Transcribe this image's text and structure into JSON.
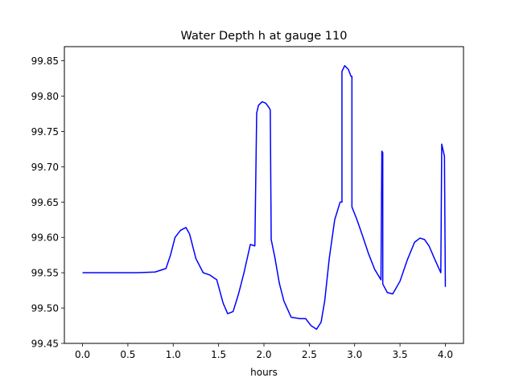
{
  "chart_data": {
    "type": "line",
    "title": "Water Depth h at gauge 110",
    "xlabel": "hours",
    "ylabel": "",
    "xlim": [
      -0.2,
      4.2
    ],
    "ylim": [
      99.45,
      99.87
    ],
    "xticks": [
      0.0,
      0.5,
      1.0,
      1.5,
      2.0,
      2.5,
      3.0,
      3.5,
      4.0
    ],
    "xtick_labels": [
      "0.0",
      "0.5",
      "1.0",
      "1.5",
      "2.0",
      "2.5",
      "3.0",
      "3.5",
      "4.0"
    ],
    "yticks": [
      99.45,
      99.5,
      99.55,
      99.6,
      99.65,
      99.7,
      99.75,
      99.8,
      99.85
    ],
    "ytick_labels": [
      "99.45",
      "99.50",
      "99.55",
      "99.60",
      "99.65",
      "99.70",
      "99.75",
      "99.80",
      "99.85"
    ],
    "grid": false,
    "series": [
      {
        "color": "#0000ff",
        "x": [
          0.0,
          0.3,
          0.6,
          0.8,
          0.92,
          0.97,
          1.02,
          1.08,
          1.14,
          1.18,
          1.25,
          1.33,
          1.4,
          1.48,
          1.55,
          1.6,
          1.66,
          1.72,
          1.78,
          1.85,
          1.9,
          1.92,
          1.94,
          1.98,
          2.02,
          2.06,
          2.07,
          2.08,
          2.12,
          2.17,
          2.22,
          2.3,
          2.4,
          2.46,
          2.52,
          2.58,
          2.63,
          2.67,
          2.72,
          2.78,
          2.84,
          2.86,
          2.86,
          2.89,
          2.93,
          2.96,
          2.97,
          2.97,
          3.02,
          3.08,
          3.15,
          3.22,
          3.29,
          3.3,
          3.31,
          3.31,
          3.36,
          3.42,
          3.5,
          3.58,
          3.66,
          3.72,
          3.77,
          3.82,
          3.88,
          3.95,
          3.96,
          3.99,
          4.0
        ],
        "y": [
          99.55,
          99.55,
          99.55,
          99.551,
          99.556,
          99.575,
          99.6,
          99.61,
          99.614,
          99.605,
          99.57,
          99.55,
          99.547,
          99.54,
          99.507,
          99.492,
          99.495,
          99.52,
          99.55,
          99.59,
          99.588,
          99.776,
          99.787,
          99.792,
          99.79,
          99.783,
          99.78,
          99.597,
          99.572,
          99.535,
          99.51,
          99.487,
          99.485,
          99.485,
          99.475,
          99.47,
          99.48,
          99.51,
          99.57,
          99.625,
          99.65,
          99.65,
          99.835,
          99.843,
          99.838,
          99.828,
          99.828,
          99.643,
          99.627,
          99.605,
          99.578,
          99.555,
          99.54,
          99.722,
          99.72,
          99.534,
          99.522,
          99.52,
          99.538,
          99.568,
          99.593,
          99.599,
          99.597,
          99.588,
          99.57,
          99.55,
          99.732,
          99.715,
          99.53
        ]
      }
    ]
  }
}
